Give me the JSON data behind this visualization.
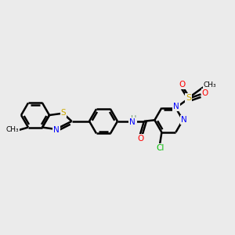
{
  "bg_color": "#ebebeb",
  "atom_colors": {
    "C": "#000000",
    "N": "#0000ff",
    "O": "#ff0000",
    "S": "#ccaa00",
    "Cl": "#00bb00",
    "H": "#6a9a6a"
  },
  "bond_color": "#000000",
  "bond_width": 1.8,
  "figsize": [
    3.0,
    3.0
  ],
  "dpi": 100
}
